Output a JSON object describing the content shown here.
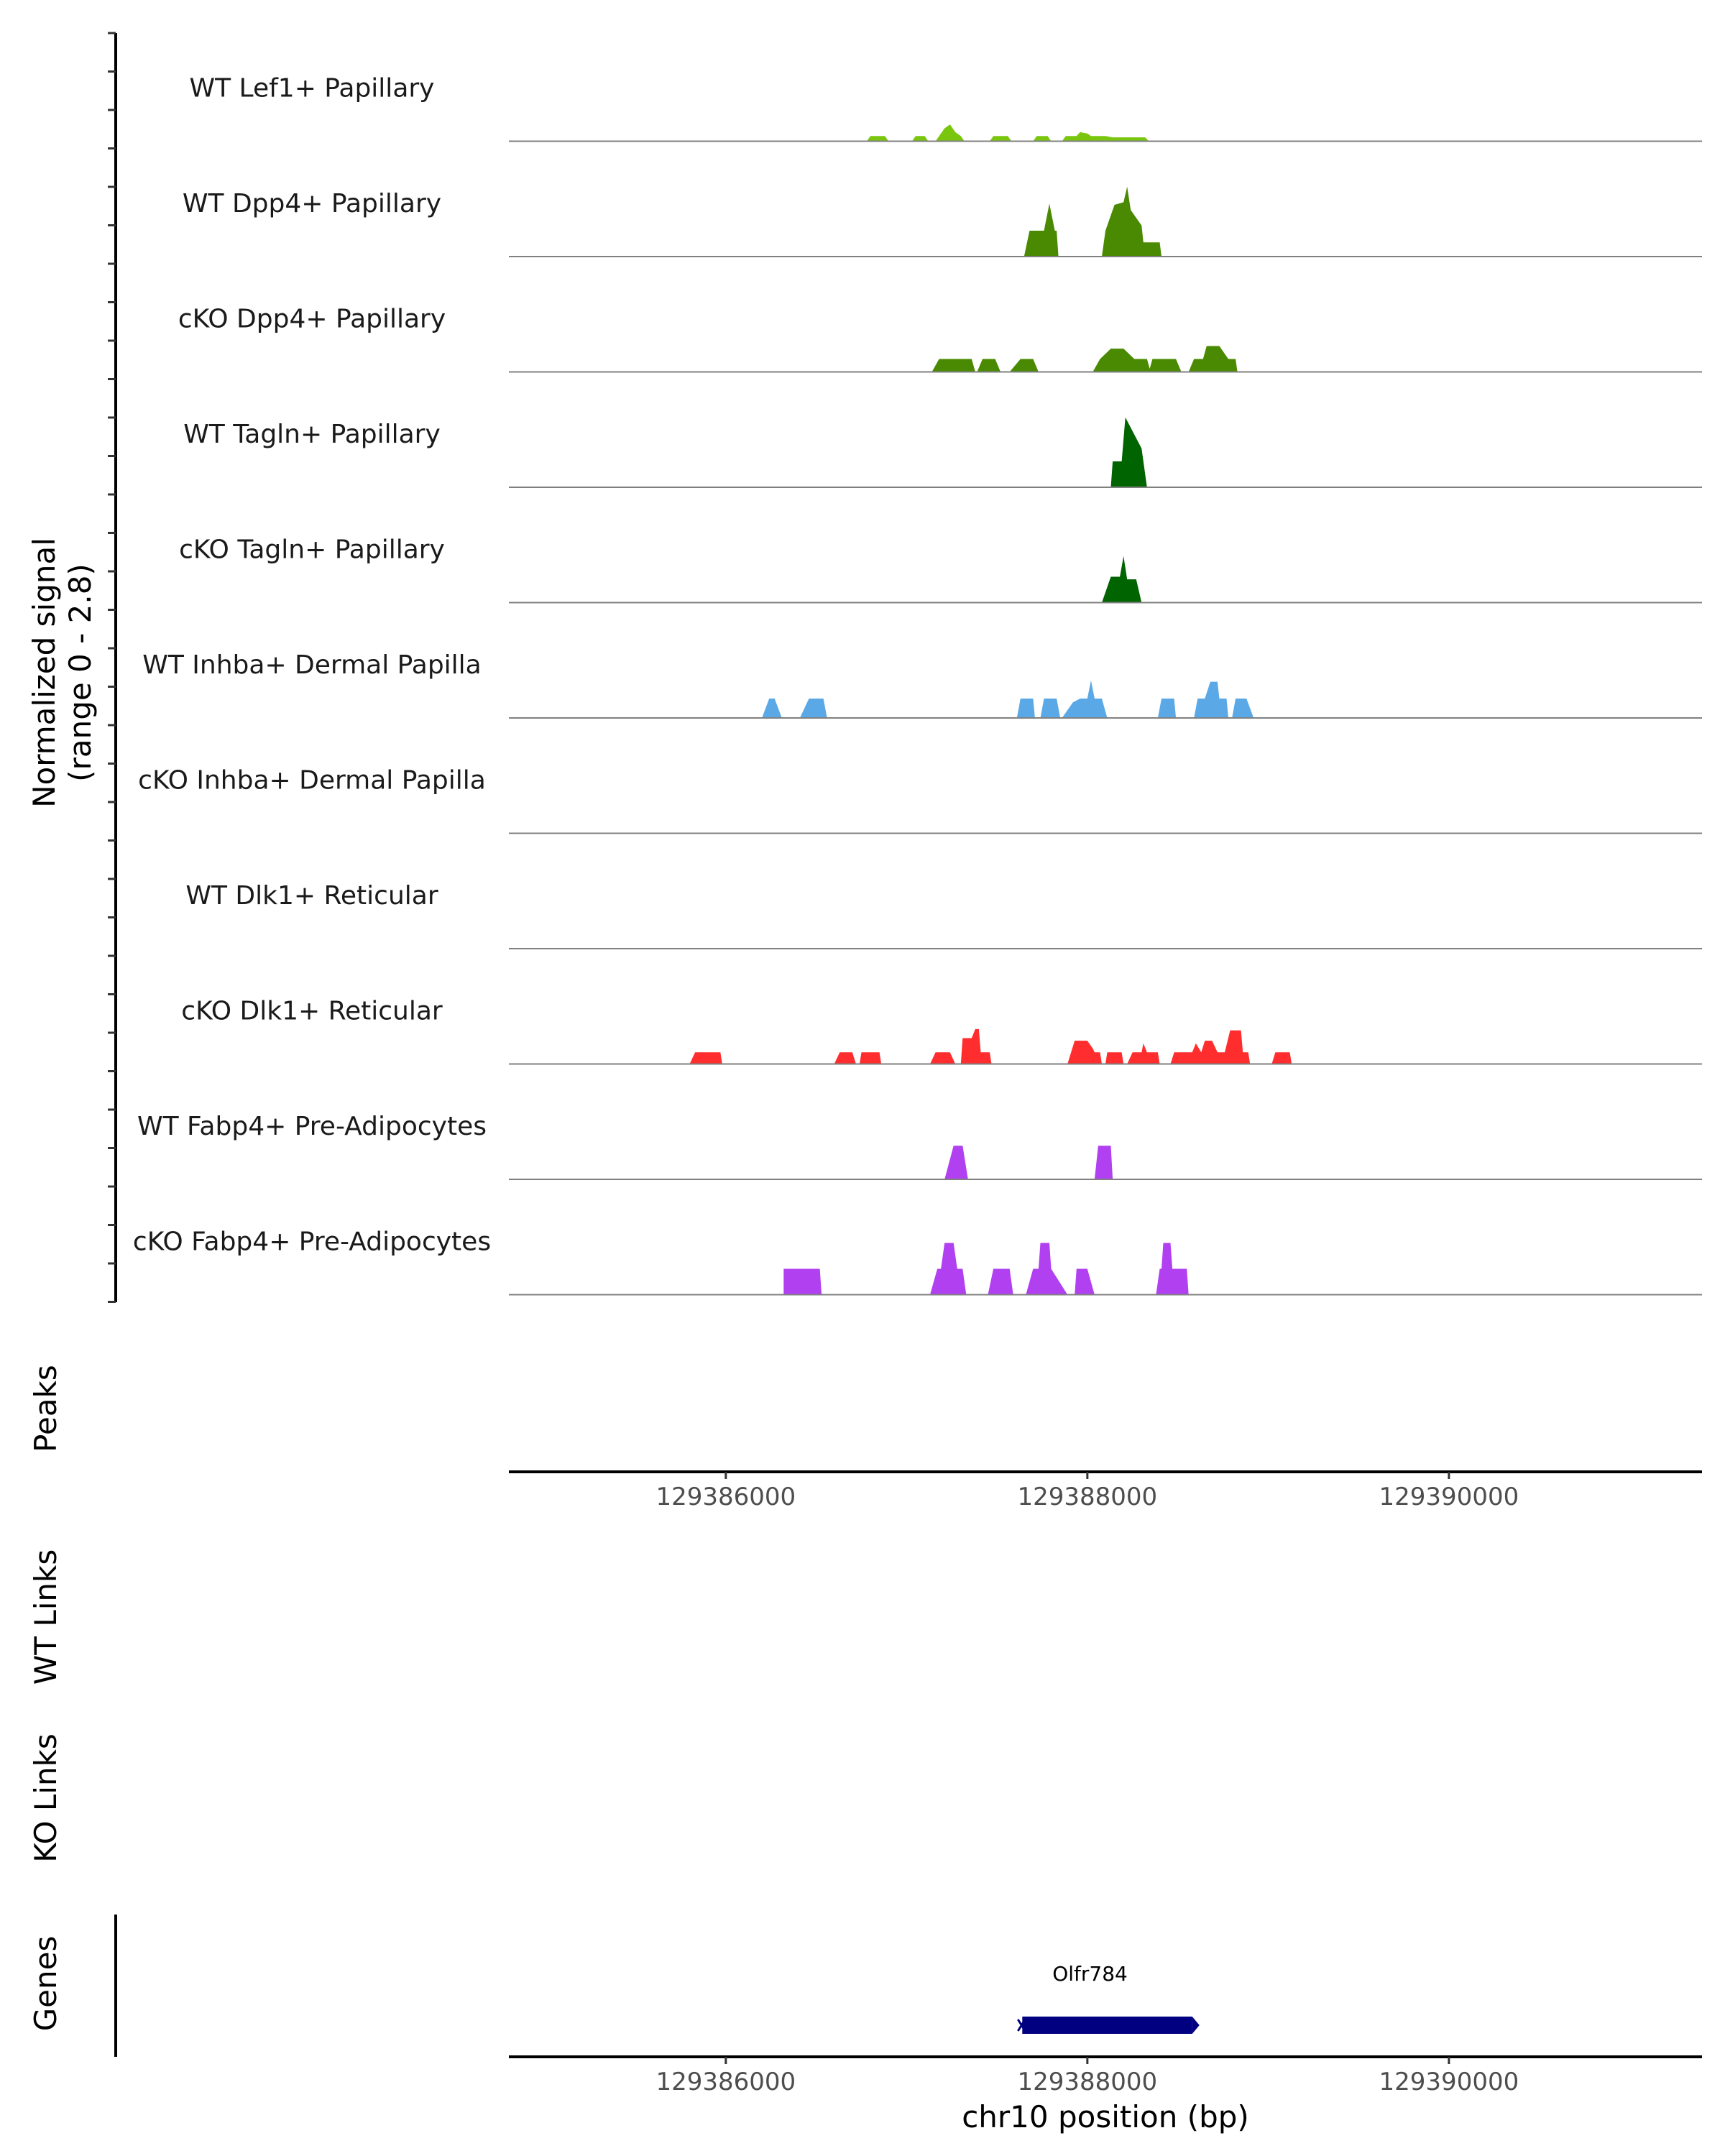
{
  "chart_data": {
    "type": "area",
    "title": "",
    "xlabel": "chr10 position (bp)",
    "x_range": [
      129384800,
      129391400
    ],
    "x_ticks": [
      129386000,
      129388000,
      129390000
    ],
    "x_tick_labels": [
      "129386000",
      "129388000",
      "129390000"
    ],
    "signal_axis_title_line1": "Normalized signal",
    "signal_axis_title_line2": "(range 0 - 2.8)",
    "ylim": [
      0,
      2.8
    ],
    "panel_labels": {
      "peaks": "Peaks",
      "wt_links": "WT Links",
      "ko_links": "KO Links",
      "genes": "Genes"
    },
    "series": [
      {
        "name": "WT Lef1+ Papillary",
        "color": "#7ac60f",
        "points": [
          [
            129386780,
            0
          ],
          [
            129386800,
            0.2
          ],
          [
            129386880,
            0.2
          ],
          [
            129386900,
            0
          ],
          [
            129387030,
            0
          ],
          [
            129387050,
            0.2
          ],
          [
            129387100,
            0.2
          ],
          [
            129387120,
            0
          ],
          [
            129387160,
            0
          ],
          [
            129387180,
            0.2
          ],
          [
            129387210,
            0.5
          ],
          [
            129387240,
            0.65
          ],
          [
            129387270,
            0.35
          ],
          [
            129387300,
            0.2
          ],
          [
            129387320,
            0
          ],
          [
            129387460,
            0
          ],
          [
            129387480,
            0.2
          ],
          [
            129387560,
            0.2
          ],
          [
            129387580,
            0
          ],
          [
            129387700,
            0
          ],
          [
            129387720,
            0.2
          ],
          [
            129387780,
            0.2
          ],
          [
            129387800,
            0
          ],
          [
            129387860,
            0
          ],
          [
            129387880,
            0.2
          ],
          [
            129387940,
            0.2
          ],
          [
            129387960,
            0.35
          ],
          [
            129388000,
            0.3
          ],
          [
            129388020,
            0.2
          ],
          [
            129388100,
            0.2
          ],
          [
            129388140,
            0.15
          ],
          [
            129388320,
            0.15
          ],
          [
            129388340,
            0
          ]
        ]
      },
      {
        "name": "WT Dpp4+ Papillary",
        "color": "#4a8a02",
        "points": [
          [
            129387650,
            0
          ],
          [
            129387680,
            1.0
          ],
          [
            129387760,
            1.0
          ],
          [
            129387790,
            2.05
          ],
          [
            129387820,
            1.0
          ],
          [
            129387830,
            1.0
          ],
          [
            129387840,
            0
          ],
          [
            129388080,
            0
          ],
          [
            129388100,
            1.0
          ],
          [
            129388150,
            2.0
          ],
          [
            129388200,
            2.1
          ],
          [
            129388220,
            2.7
          ],
          [
            129388240,
            1.8
          ],
          [
            129388300,
            1.2
          ],
          [
            129388310,
            0.55
          ],
          [
            129388400,
            0.55
          ],
          [
            129388410,
            0
          ]
        ]
      },
      {
        "name": "cKO Dpp4+ Papillary",
        "color": "#4a8a02",
        "points": [
          [
            129387140,
            0
          ],
          [
            129387180,
            0.5
          ],
          [
            129387360,
            0.5
          ],
          [
            129387380,
            0
          ],
          [
            129387390,
            0
          ],
          [
            129387420,
            0.5
          ],
          [
            129387490,
            0.5
          ],
          [
            129387520,
            0
          ],
          [
            129387570,
            0
          ],
          [
            129387630,
            0.5
          ],
          [
            129387700,
            0.5
          ],
          [
            129387730,
            0
          ],
          [
            129388030,
            0
          ],
          [
            129388070,
            0.5
          ],
          [
            129388130,
            0.9
          ],
          [
            129388200,
            0.9
          ],
          [
            129388260,
            0.5
          ],
          [
            129388330,
            0.5
          ],
          [
            129388350,
            0
          ],
          [
            129388340,
            0
          ],
          [
            129388360,
            0.5
          ],
          [
            129388490,
            0.5
          ],
          [
            129388520,
            0
          ],
          [
            129388560,
            0
          ],
          [
            129388590,
            0.5
          ],
          [
            129388640,
            0.5
          ],
          [
            129388660,
            1.0
          ],
          [
            129388730,
            1.0
          ],
          [
            129388780,
            0.5
          ],
          [
            129388820,
            0.5
          ],
          [
            129388830,
            0
          ]
        ]
      },
      {
        "name": "WT Tagln+ Papillary",
        "color": "#006400",
        "points": [
          [
            129388130,
            0
          ],
          [
            129388140,
            1.0
          ],
          [
            129388190,
            1.0
          ],
          [
            129388210,
            2.7
          ],
          [
            129388300,
            1.5
          ],
          [
            129388330,
            0
          ]
        ]
      },
      {
        "name": "cKO Tagln+ Papillary",
        "color": "#006400",
        "points": [
          [
            129388080,
            0
          ],
          [
            129388130,
            1.0
          ],
          [
            129388180,
            1.0
          ],
          [
            129388200,
            1.8
          ],
          [
            129388220,
            0.9
          ],
          [
            129388270,
            0.9
          ],
          [
            129388300,
            0
          ]
        ]
      },
      {
        "name": "WT Inhba+ Dermal Papilla",
        "color": "#5aa9e6",
        "points": [
          [
            129386200,
            0
          ],
          [
            129386240,
            0.75
          ],
          [
            129386270,
            0.75
          ],
          [
            129386310,
            0
          ],
          [
            129386410,
            0
          ],
          [
            129386460,
            0.75
          ],
          [
            129386540,
            0.75
          ],
          [
            129386560,
            0
          ],
          [
            129387610,
            0
          ],
          [
            129387630,
            0.75
          ],
          [
            129387700,
            0.75
          ],
          [
            129387710,
            0
          ],
          [
            129387740,
            0
          ],
          [
            129387760,
            0.75
          ],
          [
            129387830,
            0.75
          ],
          [
            129387850,
            0
          ],
          [
            129387860,
            0
          ],
          [
            129387920,
            0.6
          ],
          [
            129387960,
            0.75
          ],
          [
            129388000,
            0.75
          ],
          [
            129388020,
            1.45
          ],
          [
            129388040,
            0.75
          ],
          [
            129388080,
            0.75
          ],
          [
            129388110,
            0
          ],
          [
            129388390,
            0
          ],
          [
            129388410,
            0.75
          ],
          [
            129388480,
            0.75
          ],
          [
            129388490,
            0
          ],
          [
            129388590,
            0
          ],
          [
            129388610,
            0.75
          ],
          [
            129388650,
            0.75
          ],
          [
            129388680,
            1.4
          ],
          [
            129388720,
            1.4
          ],
          [
            129388730,
            0.75
          ],
          [
            129388770,
            0.75
          ],
          [
            129388780,
            0
          ],
          [
            129388800,
            0
          ],
          [
            129388820,
            0.75
          ],
          [
            129388880,
            0.75
          ],
          [
            129388920,
            0
          ]
        ]
      },
      {
        "name": "cKO Inhba+ Dermal Papilla",
        "color": "#5aa9e6",
        "points": []
      },
      {
        "name": "WT Dlk1+ Reticular",
        "color": "#ff2d2d",
        "points": []
      },
      {
        "name": "cKO Dlk1+ Reticular",
        "color": "#ff2d2d",
        "points": [
          [
            129385800,
            0
          ],
          [
            129385830,
            0.45
          ],
          [
            129385970,
            0.45
          ],
          [
            129385980,
            0
          ],
          [
            129386600,
            0
          ],
          [
            129386630,
            0.45
          ],
          [
            129386700,
            0.45
          ],
          [
            129386720,
            0
          ],
          [
            129386740,
            0
          ],
          [
            129386750,
            0.45
          ],
          [
            129386850,
            0.45
          ],
          [
            129386860,
            0
          ],
          [
            129387130,
            0
          ],
          [
            129387160,
            0.45
          ],
          [
            129387240,
            0.45
          ],
          [
            129387270,
            0
          ],
          [
            129387300,
            0
          ],
          [
            129387310,
            1.0
          ],
          [
            129387360,
            1.0
          ],
          [
            129387380,
            1.35
          ],
          [
            129387400,
            1.35
          ],
          [
            129387410,
            0.45
          ],
          [
            129387460,
            0.45
          ],
          [
            129387470,
            0
          ],
          [
            129387890,
            0
          ],
          [
            129387910,
            0.45
          ],
          [
            129387930,
            0.9
          ],
          [
            129388000,
            0.9
          ],
          [
            129388030,
            0.6
          ],
          [
            129388040,
            0.45
          ],
          [
            129388070,
            0.45
          ],
          [
            129388080,
            0
          ],
          [
            129388100,
            0
          ],
          [
            129388110,
            0.45
          ],
          [
            129388190,
            0.45
          ],
          [
            129388200,
            0
          ],
          [
            129388220,
            0
          ],
          [
            129388250,
            0.45
          ],
          [
            129388300,
            0.45
          ],
          [
            129388310,
            0.8
          ],
          [
            129388330,
            0.45
          ],
          [
            129388390,
            0.45
          ],
          [
            129388400,
            0
          ],
          [
            129388460,
            0
          ],
          [
            129388480,
            0.45
          ],
          [
            129388580,
            0.45
          ],
          [
            129388600,
            0.8
          ],
          [
            129388630,
            0.45
          ],
          [
            129388650,
            0.9
          ],
          [
            129388690,
            0.9
          ],
          [
            129388720,
            0.45
          ],
          [
            129388760,
            0.45
          ],
          [
            129388790,
            1.3
          ],
          [
            129388850,
            1.3
          ],
          [
            129388860,
            0.45
          ],
          [
            129388890,
            0.45
          ],
          [
            129388900,
            0
          ],
          [
            129389020,
            0
          ],
          [
            129389040,
            0.45
          ],
          [
            129389120,
            0.45
          ],
          [
            129389130,
            0
          ]
        ]
      },
      {
        "name": "WT Fabp4+ Pre-Adipocytes",
        "color": "#b040f0",
        "points": [
          [
            129387210,
            0
          ],
          [
            129387260,
            1.3
          ],
          [
            129387310,
            1.3
          ],
          [
            129387340,
            0
          ],
          [
            129388040,
            0
          ],
          [
            129388060,
            1.3
          ],
          [
            129388130,
            1.3
          ],
          [
            129388140,
            0
          ]
        ]
      },
      {
        "name": "cKO Fabp4+ Pre-Adipocytes",
        "color": "#b040f0",
        "points": [
          [
            129386320,
            0
          ],
          [
            129386320,
            1.0
          ],
          [
            129386520,
            1.0
          ],
          [
            129386530,
            0
          ],
          [
            129387130,
            0
          ],
          [
            129387170,
            1.0
          ],
          [
            129387190,
            1.0
          ],
          [
            129387210,
            2.0
          ],
          [
            129387260,
            2.0
          ],
          [
            129387280,
            1.0
          ],
          [
            129387310,
            1.0
          ],
          [
            129387330,
            0
          ],
          [
            129387450,
            0
          ],
          [
            129387480,
            1.0
          ],
          [
            129387570,
            1.0
          ],
          [
            129387590,
            0
          ],
          [
            129387660,
            0
          ],
          [
            129387700,
            1.0
          ],
          [
            129387730,
            1.0
          ],
          [
            129387740,
            2.0
          ],
          [
            129387790,
            2.0
          ],
          [
            129387800,
            1.0
          ],
          [
            129387890,
            0
          ],
          [
            129387930,
            0
          ],
          [
            129387940,
            1.0
          ],
          [
            129388000,
            1.0
          ],
          [
            129388040,
            0
          ],
          [
            129388380,
            0
          ],
          [
            129388400,
            1.0
          ],
          [
            129388410,
            1.0
          ],
          [
            129388420,
            2.0
          ],
          [
            129388460,
            2.0
          ],
          [
            129388470,
            1.0
          ],
          [
            129388550,
            1.0
          ],
          [
            129388560,
            0
          ]
        ]
      }
    ],
    "genes": [
      {
        "name": "Olfr784",
        "start": 129387640,
        "end": 129388580,
        "color": "#000080",
        "strand": "-"
      }
    ]
  }
}
